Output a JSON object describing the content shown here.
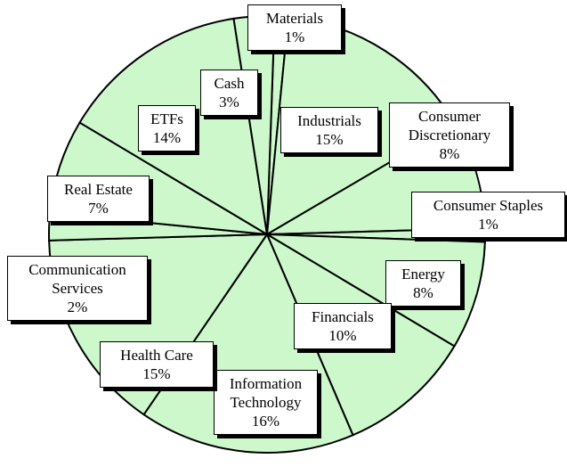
{
  "chart_data": {
    "type": "pie",
    "categories": [
      "Materials",
      "Industrials",
      "Consumer Discretionary",
      "Consumer Staples",
      "Energy",
      "Financials",
      "Information Technology",
      "Health Care",
      "Communication Services",
      "Real Estate",
      "ETFs",
      "Cash"
    ],
    "values": [
      1,
      15,
      8,
      1,
      8,
      10,
      16,
      15,
      2,
      7,
      14,
      3
    ],
    "value_labels": [
      "1%",
      "15%",
      "8%",
      "1%",
      "8%",
      "10%",
      "16%",
      "15%",
      "2%",
      "7%",
      "14%",
      "3%"
    ],
    "color": "#ccf8cc"
  }
}
